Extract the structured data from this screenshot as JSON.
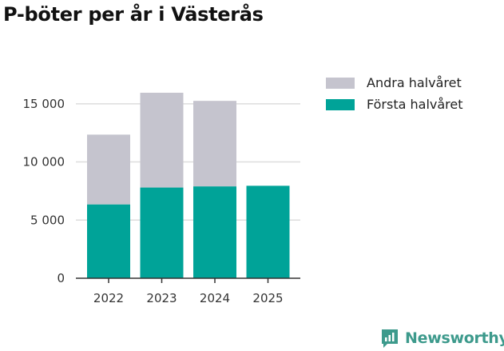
{
  "title": "P-böter per år i Västerås",
  "chart_data": {
    "type": "bar",
    "stacked": true,
    "title": "P-böter per år i Västerås",
    "categories": [
      "2022",
      "2023",
      "2024",
      "2025"
    ],
    "series": [
      {
        "name": "Första halvåret",
        "color": "#00a398",
        "values": [
          6350,
          7800,
          7900,
          7950
        ]
      },
      {
        "name": "Andra halvåret",
        "color": "#c5c4ce",
        "values": [
          6000,
          8150,
          7350,
          null
        ]
      }
    ],
    "ylim": [
      0,
      16500
    ],
    "yticks": [
      0,
      5000,
      10000,
      15000
    ],
    "ytick_labels": [
      "0",
      "5 000",
      "10 000",
      "15 000"
    ],
    "grid": true,
    "legend_position": "top-right",
    "xlabel": "",
    "ylabel": ""
  },
  "legend": [
    {
      "label": "Andra halvåret",
      "color": "#c5c4ce"
    },
    {
      "label": "Första halvåret",
      "color": "#00a398"
    }
  ],
  "brand": {
    "name": "Newsworthy",
    "icon": "newsworthy-logo-icon",
    "color": "#3d9a8c"
  }
}
